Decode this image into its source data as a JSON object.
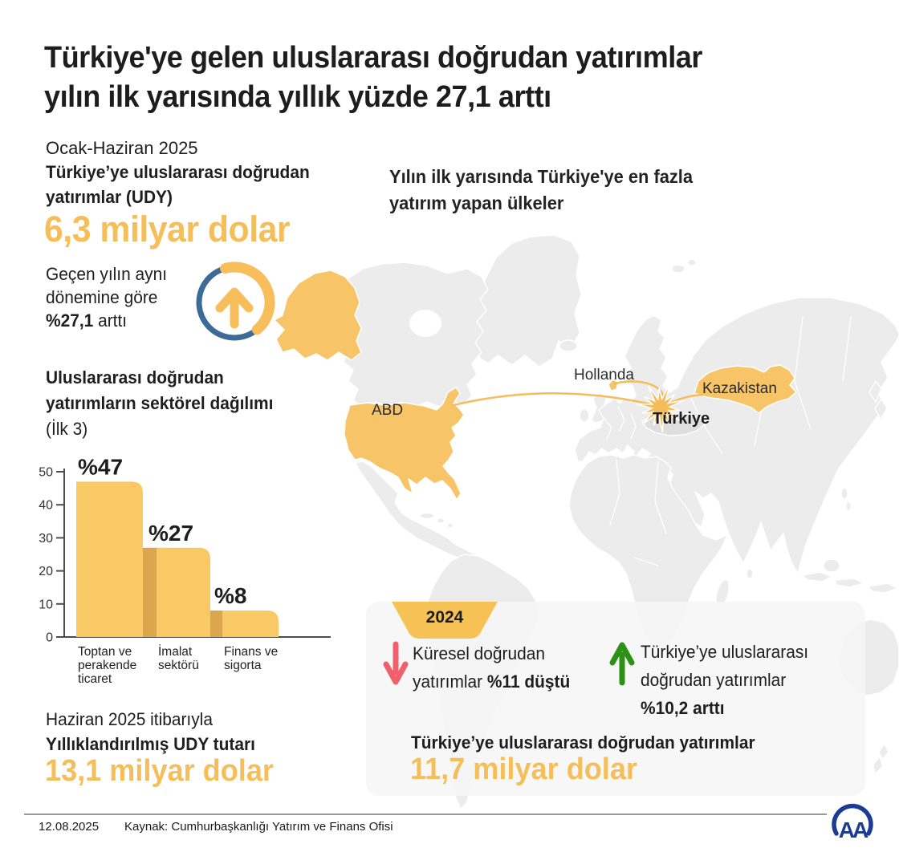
{
  "header": {
    "title_line1": "Türkiye'ye gelen uluslararası doğrudan yatırımlar",
    "title_line2": "yılın ilk yarısında yıllık yüzde 27,1 arttı"
  },
  "udy": {
    "period": "Ocak-Haziran 2025",
    "label_line1": "Türkiye’ye uluslararası doğrudan",
    "label_line2": "yatırımlar (UDY)",
    "value": "6,3 milyar dolar",
    "note_line1": "Geçen yılın aynı",
    "note_line2": "dönemine göre",
    "note_bold": "%27,1",
    "note_tail": " arttı"
  },
  "map": {
    "heading_line1": "Yılın ilk yarısında Türkiye'ye en fazla",
    "heading_line2": "yatırım yapan ülkeler",
    "labels": {
      "usa": "ABD",
      "netherlands": "Hollanda",
      "kazakhstan": "Kazakistan",
      "turkey": "Türkiye"
    }
  },
  "sector": {
    "heading_line1": "Uluslararası doğrudan",
    "heading_line2": "yatırımların sektörel dağılımı",
    "heading_line3": "(İlk 3)"
  },
  "chart_data": {
    "type": "bar",
    "title": "Uluslararası doğrudan yatırımların sektörel dağılımı (İlk 3)",
    "categories": [
      "Toptan ve perakende ticaret",
      "İmalat sektörü",
      "Finans ve sigorta"
    ],
    "category_lines": [
      [
        "Toptan ve",
        "perakende",
        "ticaret"
      ],
      [
        "İmalat",
        "sektörü"
      ],
      [
        "Finans ve",
        "sigorta"
      ]
    ],
    "values": [
      47,
      27,
      8
    ],
    "value_labels": [
      "%47",
      "%27",
      "%8"
    ],
    "xlabel": "",
    "ylabel": "",
    "ylim": [
      0,
      50
    ],
    "yticks": [
      0,
      10,
      20,
      30,
      40,
      50
    ],
    "grid": false,
    "legend": false,
    "bar_color": "#F9C966",
    "bar_shadow_color": "#DCA64F"
  },
  "annualized": {
    "period": "Haziran 2025 itibarıyla",
    "label": "Yıllıklandırılmış UDY tutarı",
    "value": "13,1 milyar dolar"
  },
  "box2024": {
    "badge": "2024",
    "global_line1": "Küresel doğrudan",
    "global_line2_prefix": "yatırımlar ",
    "global_line2_bold": "%11 düştü",
    "turkey_line1": "Türkiye’ye uluslararası",
    "turkey_line2": "doğrudan yatırımlar",
    "turkey_line3_bold": "%10,2 arttı",
    "total_label": "Türkiye’ye uluslararası doğrudan yatırımlar",
    "total_value": "11,7 milyar dolar"
  },
  "footer": {
    "date": "12.08.2025",
    "source": "Kaynak: Cumhurbaşkanlığı Yatırım ve Finans Ofisi",
    "logo_text": "AA"
  },
  "colors": {
    "accent_orange": "#F6BE59",
    "map_highlight": "#F7C568",
    "map_gray": "#ECECEC",
    "text_dark": "#1E1E1E",
    "ring_blue": "#3D6B97",
    "down_red": "#F0606B",
    "up_green": "#2F9018",
    "box_bg": "#F6F6F6"
  }
}
